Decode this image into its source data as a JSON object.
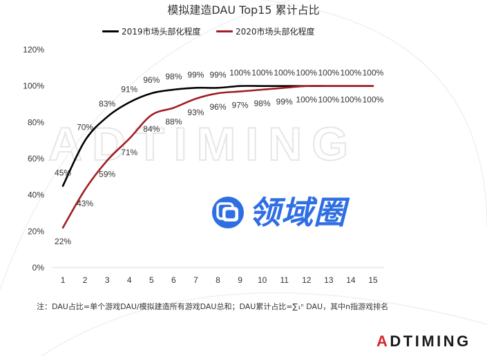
{
  "chart_data": {
    "type": "line",
    "title": "模拟建造DAU Top15 累计占比",
    "categories": [
      "1",
      "2",
      "3",
      "4",
      "5",
      "6",
      "7",
      "8",
      "9",
      "10",
      "11",
      "12",
      "13",
      "14",
      "15"
    ],
    "series": [
      {
        "name": "2019市场头部化程度",
        "color": "#000000",
        "values": [
          45,
          70,
          83,
          91,
          96,
          98,
          99,
          99,
          100,
          100,
          100,
          100,
          100,
          100,
          100
        ]
      },
      {
        "name": "2020市场头部化程度",
        "color": "#a11d21",
        "values": [
          22,
          43,
          59,
          71,
          84,
          88,
          93,
          96,
          97,
          98,
          99,
          100,
          100,
          100,
          100
        ]
      }
    ],
    "value_unit": "%",
    "ylim": [
      0,
      120
    ],
    "yticks": [
      0,
      20,
      40,
      60,
      80,
      100,
      120
    ],
    "grid": false,
    "legend": "top",
    "data_labels": true
  },
  "footnote": "注：DAU占比=单个游戏DAU/模拟建造所有游戏DAU总和；DAU累计占比=∑₁ⁿ DAU，其中n指游戏排名",
  "watermark": "ADTIMING",
  "center_logo": {
    "text": "领域圈",
    "color": "#2f6fe4",
    "icon": "overlapping-squares-icon"
  },
  "brand_logo": {
    "text": "ADTIMING",
    "accent_color": "#d7252b"
  }
}
